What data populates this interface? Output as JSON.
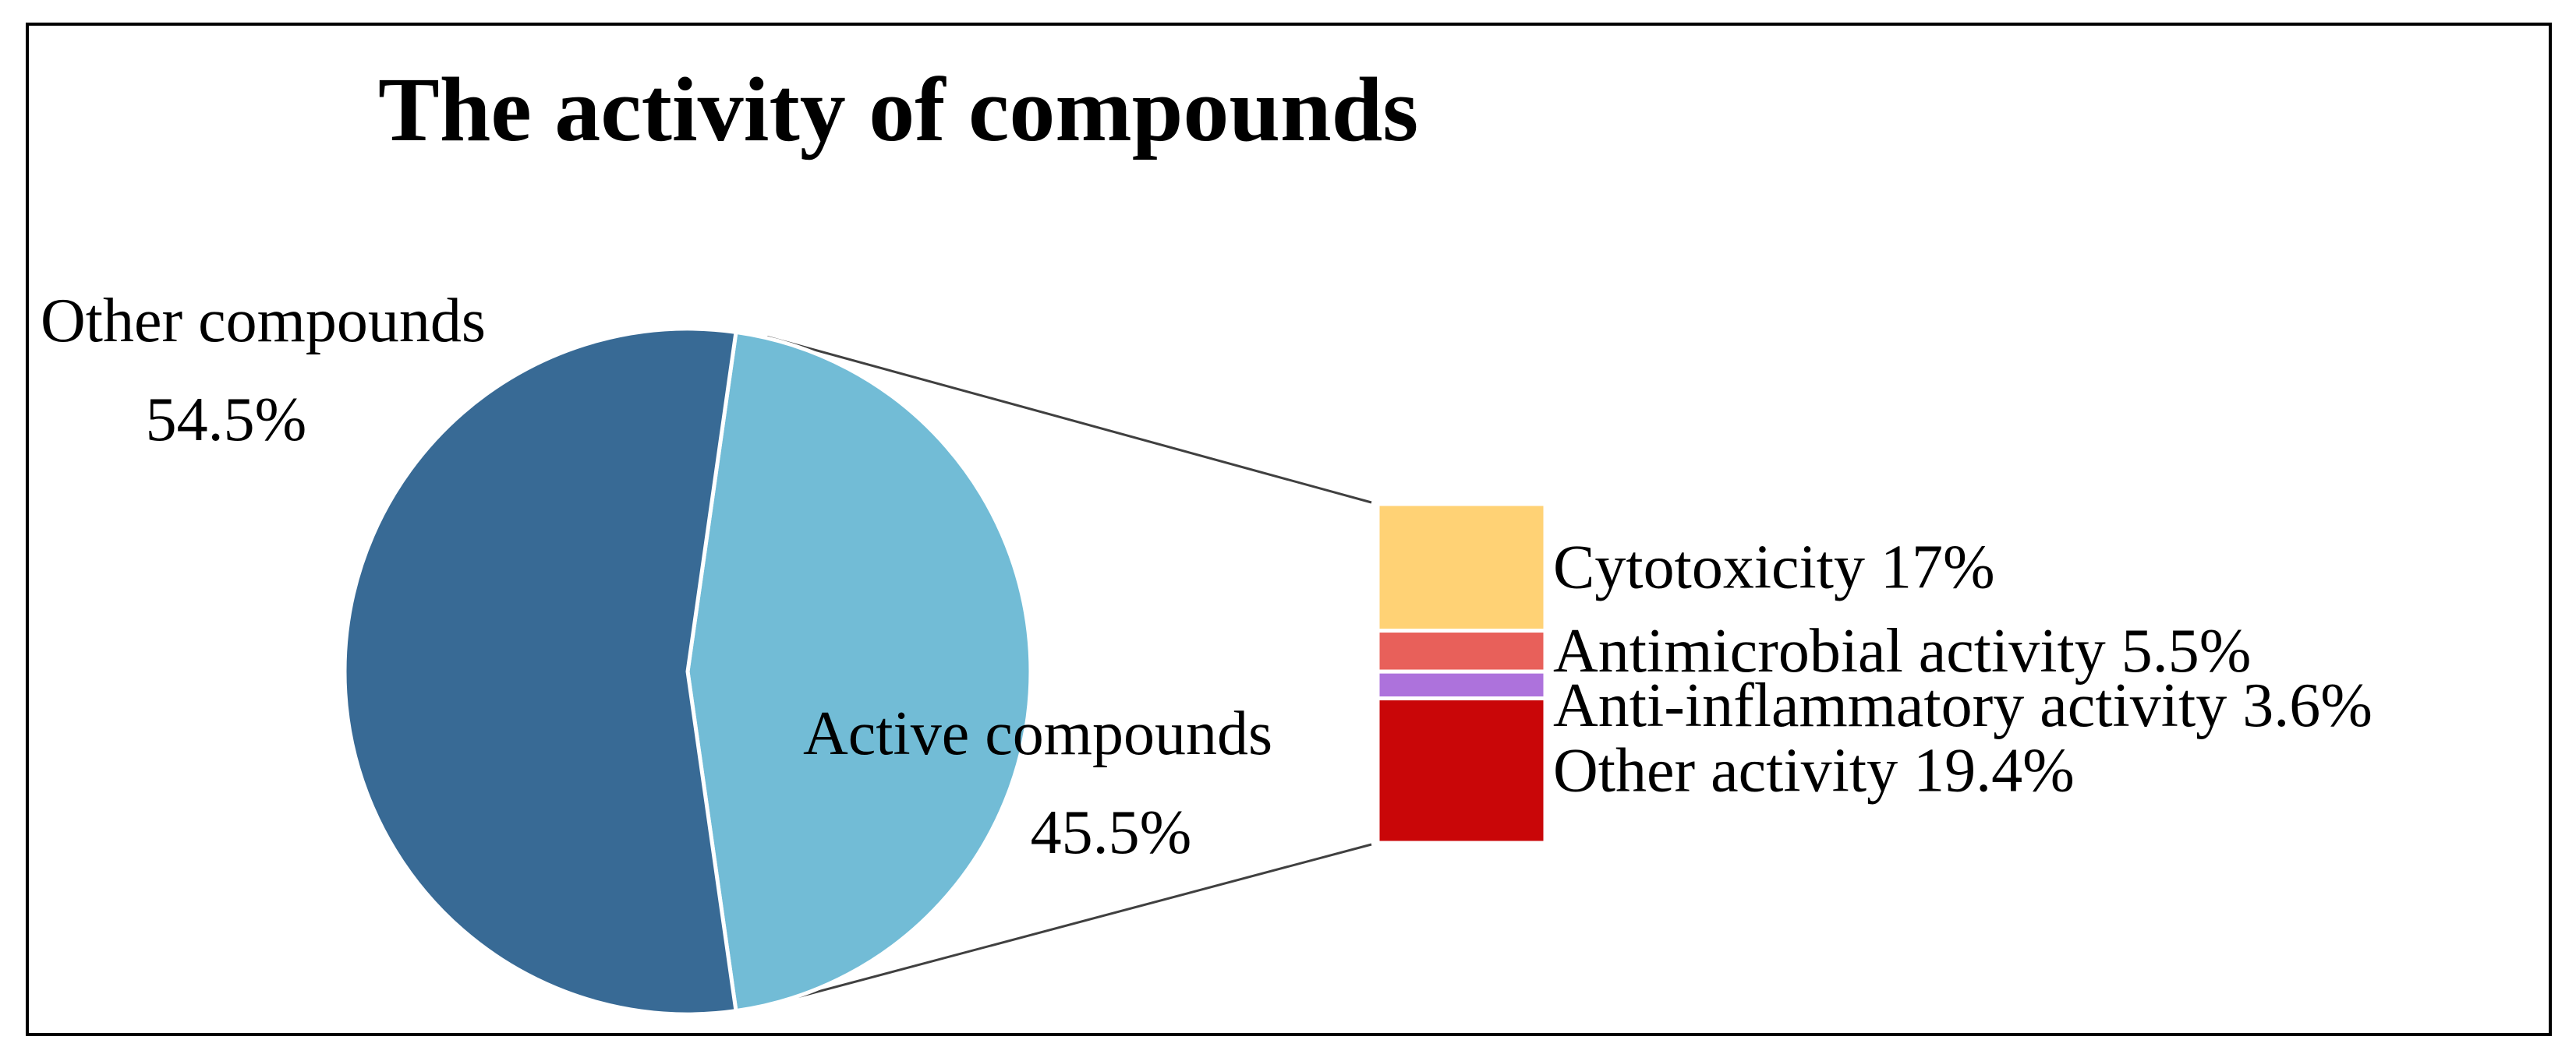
{
  "chart_data": {
    "type": "pie",
    "subtype": "pie-of-bar",
    "title": "The activity of compounds",
    "pie": {
      "slices": [
        {
          "label": "Other compounds",
          "value_label": "54.5%",
          "value": 54.5,
          "color": "#386a95"
        },
        {
          "label": "Active compounds",
          "value_label": "45.5%",
          "value": 45.5,
          "color": "#72bcd6"
        }
      ],
      "expanded_slice": "Active compounds"
    },
    "breakdown_bar": {
      "segments": [
        {
          "label": "Cytotoxicity 17%",
          "value": 17,
          "color": "#ffd275"
        },
        {
          "label": "Antimicrobial activity 5.5%",
          "value": 5.5,
          "color": "#e8605a"
        },
        {
          "label": "Anti-inflammatory activity 3.6%",
          "value": 3.6,
          "color": "#ad72dc"
        },
        {
          "label": "Other activity 19.4%",
          "value": 19.4,
          "color": "#c90608"
        }
      ]
    },
    "connector_color": "#404040",
    "legend": "none",
    "grid": false
  }
}
